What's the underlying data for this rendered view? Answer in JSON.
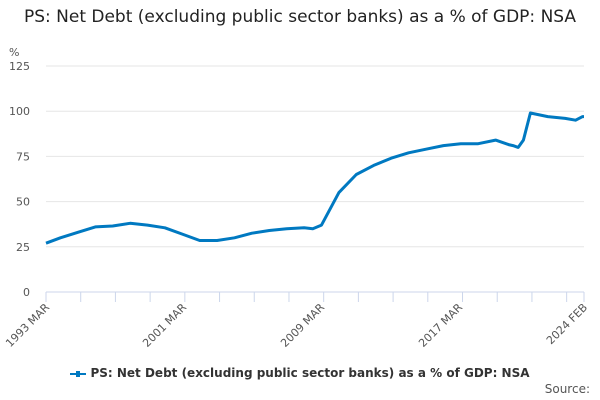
{
  "chart_data": {
    "type": "line",
    "title": "PS: Net Debt (excluding public sector banks) as a % of GDP: NSA",
    "ylabel": "%",
    "xlabel": "",
    "ylim": [
      0,
      125
    ],
    "yticks": [
      0,
      25,
      50,
      75,
      100,
      125
    ],
    "xtick_labels": [
      "1993 MAR",
      "2001 MAR",
      "2009 MAR",
      "2017 MAR",
      "2024 FEB"
    ],
    "grid": true,
    "legend_position": "bottom",
    "series": [
      {
        "name": "PS: Net Debt (excluding public sector banks) as a % of GDP: NSA",
        "color": "#0079c1",
        "x": [
          1993.17,
          1994.0,
          1995.0,
          1996.0,
          1997.0,
          1998.0,
          1999.0,
          2000.0,
          2001.0,
          2002.0,
          2003.0,
          2004.0,
          2005.0,
          2006.0,
          2007.0,
          2008.0,
          2008.5,
          2009.0,
          2009.5,
          2010.0,
          2011.0,
          2012.0,
          2013.0,
          2014.0,
          2015.0,
          2016.0,
          2017.0,
          2018.0,
          2019.0,
          2019.75,
          2020.0,
          2020.3,
          2020.6,
          2021.0,
          2022.0,
          2023.0,
          2023.6,
          2024.0,
          2024.08
        ],
        "values": [
          27,
          30,
          33,
          36,
          36.5,
          38,
          37,
          35.5,
          32,
          28.5,
          28.5,
          30,
          32.5,
          34,
          35,
          35.5,
          35,
          37,
          46,
          55,
          65,
          70,
          74,
          77,
          79,
          81,
          82,
          82,
          84,
          81.5,
          81,
          80,
          84,
          99,
          97,
          96,
          95,
          97,
          97
        ]
      }
    ]
  },
  "source_label": "Source:"
}
